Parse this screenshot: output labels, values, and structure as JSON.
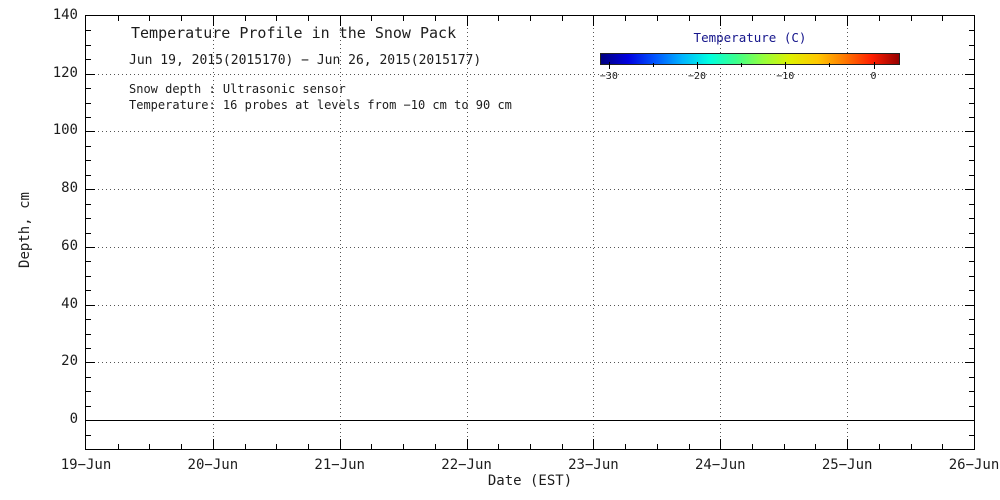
{
  "chart_data": {
    "type": "heatmap",
    "title": "Temperature Profile in the Snow Pack",
    "subtitle": "Jun 19, 2015(2015170) − Jun 26, 2015(2015177)",
    "annotations": [
      "Snow depth : Ultrasonic sensor",
      "Temperature: 16 probes at levels from −10 cm to 90 cm"
    ],
    "xlabel": "Date (EST)",
    "ylabel": "Depth, cm",
    "x_ticks": [
      "19−Jun",
      "20−Jun",
      "21−Jun",
      "22−Jun",
      "23−Jun",
      "24−Jun",
      "25−Jun",
      "26−Jun"
    ],
    "x_range_days": 7,
    "x_minor_per_day": 4,
    "y_ticks": [
      0,
      20,
      40,
      60,
      80,
      100,
      120,
      140
    ],
    "y_minor_step": 5,
    "ylim": [
      -10,
      140
    ],
    "grid": "dotted",
    "zero_depth_line_y": 0,
    "series": [],
    "colorbar": {
      "label": "Temperature (C)",
      "ticks": [
        -30,
        -20,
        -10,
        0
      ],
      "minor_tick_step": 5,
      "range": [
        -31,
        3
      ],
      "colormap": "jet",
      "colors": [
        "#000080",
        "#0000e0",
        "#0055ff",
        "#00b4ff",
        "#00ffe0",
        "#3cff8c",
        "#96ff3c",
        "#e0f000",
        "#ffc800",
        "#ff7800",
        "#ff1e00",
        "#960000"
      ]
    },
    "colors": {
      "text": "#1c1c1c",
      "grid": "#555555",
      "axis": "#000000",
      "colorbar_label": "#16168c"
    }
  }
}
